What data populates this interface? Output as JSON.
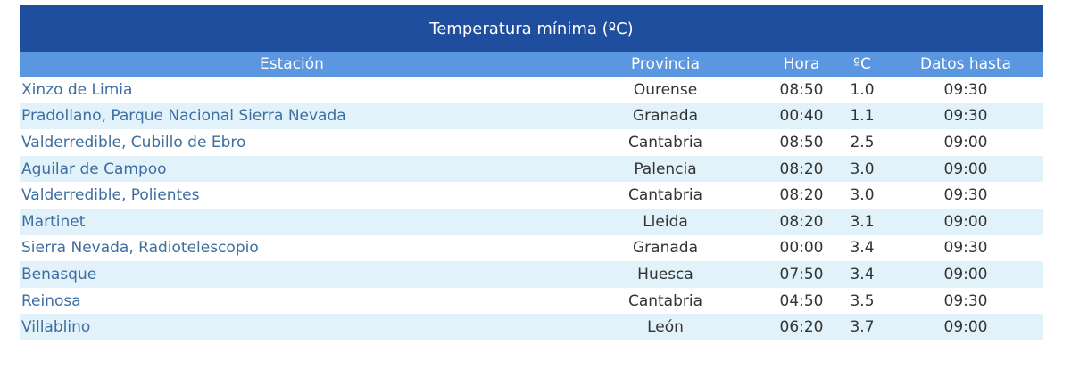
{
  "title": "Temperatura mínima (ºC)",
  "columns": {
    "station": "Estación",
    "province": "Provincia",
    "time": "Hora",
    "temp": "ºC",
    "data_until": "Datos hasta"
  },
  "rows": [
    {
      "station": "Xinzo de Limia",
      "province": "Ourense",
      "time": "08:50",
      "temp": "1.0",
      "data_until": "09:30"
    },
    {
      "station": "Pradollano, Parque Nacional Sierra Nevada",
      "province": "Granada",
      "time": "00:40",
      "temp": "1.1",
      "data_until": "09:30"
    },
    {
      "station": "Valderredible, Cubillo de Ebro",
      "province": "Cantabria",
      "time": "08:50",
      "temp": "2.5",
      "data_until": "09:00"
    },
    {
      "station": "Aguilar de Campoo",
      "province": "Palencia",
      "time": "08:20",
      "temp": "3.0",
      "data_until": "09:00"
    },
    {
      "station": "Valderredible, Polientes",
      "province": "Cantabria",
      "time": "08:20",
      "temp": "3.0",
      "data_until": "09:30"
    },
    {
      "station": "Martinet",
      "province": "Lleida",
      "time": "08:20",
      "temp": "3.1",
      "data_until": "09:00"
    },
    {
      "station": "Sierra Nevada, Radiotelescopio",
      "province": "Granada",
      "time": "00:00",
      "temp": "3.4",
      "data_until": "09:30"
    },
    {
      "station": "Benasque",
      "province": "Huesca",
      "time": "07:50",
      "temp": "3.4",
      "data_until": "09:00"
    },
    {
      "station": "Reinosa",
      "province": "Cantabria",
      "time": "04:50",
      "temp": "3.5",
      "data_until": "09:30"
    },
    {
      "station": "Villablino",
      "province": "León",
      "time": "06:20",
      "temp": "3.7",
      "data_until": "09:00"
    }
  ]
}
